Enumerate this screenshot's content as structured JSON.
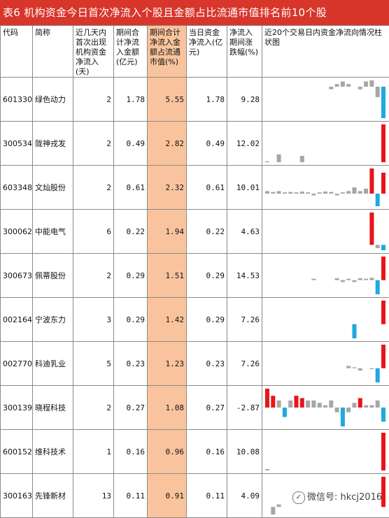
{
  "title": "表6 机构资金今日首次净流入个股且金额占比流通市值排名前10个股",
  "headers": [
    "代码",
    "简称",
    "近几天内首次出现机构资金净流入(天)",
    "期间合计净流入金额(亿元)",
    "期间合计净流入金额占流通市值(%)",
    "当日资金净流入(亿元)",
    "净流入期间涨跌幅(%)",
    "近20个交易日内资金净流向情况柱状图"
  ],
  "rows": [
    {
      "code": "601330",
      "name": "绿色动力",
      "days": "2",
      "total": "1.78",
      "pct": "5.55",
      "today": "1.78",
      "change": "9.28",
      "bars": [
        0,
        0,
        0,
        0,
        0,
        0,
        0,
        0,
        0,
        0,
        0,
        -0.5,
        0.5,
        1,
        0.5,
        0,
        -0.5,
        1,
        1.2,
        -2,
        -6
      ]
    },
    {
      "code": "300534",
      "name": "陇神戎发",
      "days": "2",
      "total": "0.49",
      "pct": "2.82",
      "today": "0.49",
      "change": "12.02",
      "bars": [
        0.3,
        0,
        2.5,
        0,
        0,
        0,
        2,
        0,
        0,
        0,
        0,
        0,
        0,
        0,
        0,
        0,
        0,
        0,
        0,
        0,
        12
      ]
    },
    {
      "code": "603348",
      "name": "文灿股份",
      "days": "2",
      "total": "0.61",
      "pct": "2.32",
      "today": "0.61",
      "change": "10.01",
      "bars": [
        0.6,
        0.4,
        0.6,
        0.3,
        0.4,
        0.3,
        0.5,
        0.3,
        -0.4,
        0.3,
        0.5,
        0.4,
        -0.4,
        0.3,
        0.6,
        1.5,
        0.6,
        1.2,
        6,
        -3,
        5
      ]
    },
    {
      "code": "300062",
      "name": "中能电气",
      "days": "6",
      "total": "0.22",
      "pct": "1.94",
      "today": "0.22",
      "change": "4.63",
      "bars": [
        0,
        0,
        0,
        0,
        0,
        0,
        0,
        0,
        0,
        0,
        0,
        0,
        0,
        0,
        0,
        0,
        0,
        0,
        6,
        -0.6,
        -1
      ]
    },
    {
      "code": "300673",
      "name": "佩蒂股份",
      "days": "2",
      "total": "0.29",
      "pct": "1.51",
      "today": "0.29",
      "change": "14.53",
      "bars": [
        0,
        0,
        0,
        0,
        0,
        0,
        0,
        0,
        0.3,
        0,
        0,
        0,
        0.4,
        -0.4,
        0.3,
        -0.4,
        0.4,
        0.3,
        0.5,
        -3,
        5
      ]
    },
    {
      "code": "002164",
      "name": "宁波东力",
      "days": "3",
      "total": "0.29",
      "pct": "1.42",
      "today": "0.29",
      "change": "7.26",
      "bars": [
        0,
        0,
        0,
        0,
        0,
        0,
        0,
        0,
        0,
        0,
        0,
        0,
        0,
        0,
        0,
        -3,
        0,
        0,
        0,
        0,
        5
      ]
    },
    {
      "code": "002770",
      "name": "科迪乳业",
      "days": "5",
      "total": "0.23",
      "pct": "1.23",
      "today": "0.23",
      "change": "7.26",
      "bars": [
        0,
        0,
        0,
        0,
        0,
        0,
        0,
        0,
        0,
        0,
        0,
        0,
        0,
        0,
        0.5,
        0.2,
        -0.5,
        0,
        -0.2,
        -3,
        5
      ]
    },
    {
      "code": "300139",
      "name": "晓程科技",
      "days": "2",
      "total": "0.27",
      "pct": "1.08",
      "today": "0.27",
      "change": "-2.87",
      "bars": [
        4,
        2.5,
        1.5,
        -2,
        1.5,
        2.5,
        2,
        1.5,
        1.5,
        1,
        0.5,
        1.5,
        -1,
        -4,
        -1,
        1,
        2,
        0.5,
        0.5,
        1.5,
        -3
      ]
    },
    {
      "code": "600152",
      "name": "维科技术",
      "days": "1",
      "total": "0.16",
      "pct": "0.96",
      "today": "0.16",
      "change": "10.08",
      "bars": [
        0.5,
        0,
        0,
        0,
        0,
        0,
        0,
        0,
        0,
        0,
        0,
        0,
        0,
        0,
        0,
        0,
        0,
        0,
        0,
        0,
        14
      ]
    },
    {
      "code": "300163",
      "name": "先锋新材",
      "days": "13",
      "total": "0.11",
      "pct": "0.91",
      "today": "0.11",
      "change": "4.09",
      "bars": [
        0,
        -1.5,
        0.5,
        0,
        0,
        0,
        0,
        0,
        0,
        0,
        0,
        0,
        0,
        0,
        0,
        0,
        0,
        0,
        0,
        0,
        6
      ]
    }
  ],
  "colors": {
    "title_bg": "#d8362b",
    "highlight": "#f9c49d",
    "bar_pos": "#a6a6a6",
    "bar_neg": "#a6a6a6",
    "bar_last_pos": "#e8151b",
    "bar_last_neg": "#21a8e0"
  },
  "watermark": "微信号: hkcj2016"
}
